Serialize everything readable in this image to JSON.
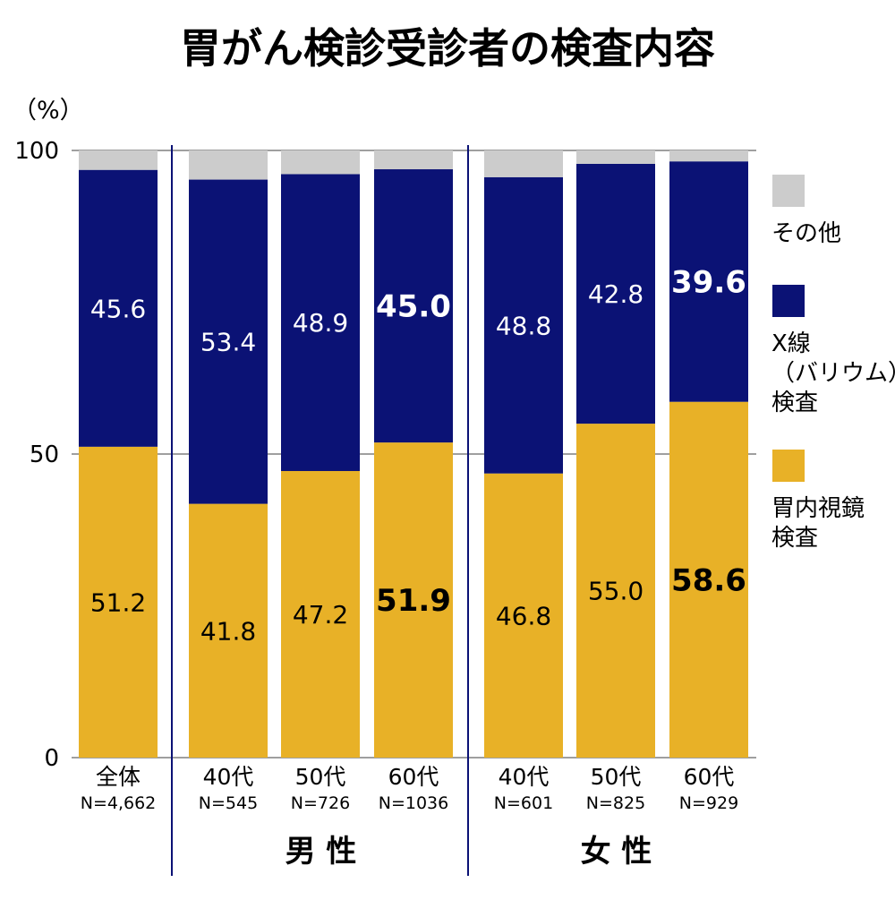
{
  "chart_data": {
    "type": "bar",
    "stacked": true,
    "title": "胃がん検診受診者の検査内容",
    "ylabel": "（%）",
    "ylim": [
      0,
      100
    ],
    "yticks": [
      0,
      50,
      100
    ],
    "grid": true,
    "legend_position": "right",
    "categories": [
      {
        "label": "全体",
        "n": "N=4,662"
      },
      {
        "label": "40代",
        "n": "N=545"
      },
      {
        "label": "50代",
        "n": "N=726"
      },
      {
        "label": "60代",
        "n": "N=1036"
      },
      {
        "label": "40代",
        "n": "N=601"
      },
      {
        "label": "50代",
        "n": "N=825"
      },
      {
        "label": "60代",
        "n": "N=929"
      }
    ],
    "groups": [
      {
        "label": "男 性",
        "categories": [
          1,
          2,
          3
        ]
      },
      {
        "label": "女 性",
        "categories": [
          4,
          5,
          6
        ]
      }
    ],
    "series": [
      {
        "name": "胃内視鏡検査",
        "color": "#e8b127",
        "values": [
          51.2,
          41.8,
          47.2,
          51.9,
          46.8,
          55.0,
          58.6
        ],
        "labels": [
          "51.2",
          "41.8",
          "47.2",
          "51.9",
          "46.8",
          "55.0",
          "58.6"
        ],
        "label_color": "#000000"
      },
      {
        "name": "X線（バリウム）検査",
        "color": "#0b1275",
        "values": [
          45.6,
          53.4,
          48.9,
          45.0,
          48.8,
          42.8,
          39.6
        ],
        "labels": [
          "45.6",
          "53.4",
          "48.9",
          "45.0",
          "48.8",
          "42.8",
          "39.6"
        ],
        "label_color": "#ffffff"
      },
      {
        "name": "その他",
        "color": "#cccccc",
        "values": [
          3.2,
          4.8,
          3.9,
          3.1,
          4.4,
          2.2,
          1.8
        ],
        "labels": [],
        "label_color": "#000000"
      }
    ],
    "highlight_categories": [
      3,
      6
    ],
    "legend": [
      {
        "lines": [
          "その他"
        ],
        "color": "#cccccc"
      },
      {
        "lines": [
          "X線",
          "（バリウム）",
          "検査"
        ],
        "color": "#0b1275"
      },
      {
        "lines": [
          "胃内視鏡",
          "検査"
        ],
        "color": "#e8b127"
      }
    ],
    "colors": {
      "grid": "#666666",
      "divider": "#0b1275"
    }
  }
}
